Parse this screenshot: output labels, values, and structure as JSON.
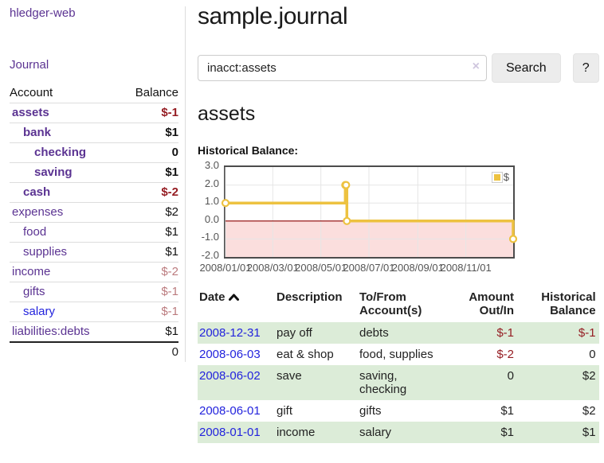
{
  "colors": {
    "accent_purple": "#5b3392",
    "link_blue": "#2323dd",
    "negative_dark": "#951d23",
    "negative_light": "#bb7b7e",
    "row_green": "#dcecd8",
    "chart_gold": "#edc240",
    "chart_negative_fill": "#fbdedd",
    "chart_zero_line": "#8b0000"
  },
  "brand": "hledger-web",
  "nav": {
    "journal": "Journal"
  },
  "sidebar": {
    "account_col": "Account",
    "balance_col": "Balance",
    "accounts": [
      {
        "name": "assets",
        "balance": "$-1"
      },
      {
        "name": "bank",
        "balance": "$1"
      },
      {
        "name": "checking",
        "balance": "0"
      },
      {
        "name": "saving",
        "balance": "$1"
      },
      {
        "name": "cash",
        "balance": "$-2"
      },
      {
        "name": "expenses",
        "balance": "$2"
      },
      {
        "name": "food",
        "balance": "$1"
      },
      {
        "name": "supplies",
        "balance": "$1"
      },
      {
        "name": "income",
        "balance": "$-2"
      },
      {
        "name": "gifts",
        "balance": "$-1"
      },
      {
        "name": "salary",
        "balance": "$-1"
      },
      {
        "name": "liabilities:debts",
        "balance": "$1"
      }
    ],
    "total": "0"
  },
  "main": {
    "title": "sample.journal",
    "search": {
      "value": "inacct:assets",
      "clear": "×",
      "button": "Search",
      "help": "?"
    },
    "account_title": "assets",
    "chart_heading": "Historical Balance:"
  },
  "chart_data": {
    "type": "line",
    "step": true,
    "title": "Historical Balance:",
    "legend": "$",
    "legend_position": "top-right",
    "grid": true,
    "ylim": [
      -2,
      3
    ],
    "yticks": [
      3.0,
      2.0,
      1.0,
      0.0,
      -1.0,
      -2.0
    ],
    "xrange": [
      "2008-01-01",
      "2008-12-31"
    ],
    "xticks": [
      "2008/01/01",
      "2008/03/01",
      "2008/05/01",
      "2008/07/01",
      "2008/09/01",
      "2008/11/01"
    ],
    "series": [
      {
        "name": "$",
        "color": "#edc240",
        "points": [
          [
            "2008-01-01",
            1
          ],
          [
            "2008-06-01",
            2
          ],
          [
            "2008-06-02",
            2
          ],
          [
            "2008-06-03",
            0
          ],
          [
            "2008-12-31",
            -1
          ]
        ]
      }
    ],
    "negative_fill": "#fbdedd",
    "zero_line_color": "#8b0000",
    "gridline_color": "#e6e6e6"
  },
  "register": {
    "headers": {
      "date": "Date",
      "description": "Description",
      "accounts": "To/From Account(s)",
      "amount": "Amount Out/In",
      "balance": "Historical Balance"
    },
    "rows": [
      {
        "date": "2008-12-31",
        "description": "pay off",
        "accounts": "debts",
        "amount": "$-1",
        "balance": "$-1"
      },
      {
        "date": "2008-06-03",
        "description": "eat & shop",
        "accounts": "food, supplies",
        "amount": "$-2",
        "balance": "0"
      },
      {
        "date": "2008-06-02",
        "description": "save",
        "accounts": "saving, checking",
        "amount": "0",
        "balance": "$2"
      },
      {
        "date": "2008-06-01",
        "description": "gift",
        "accounts": "gifts",
        "amount": "$1",
        "balance": "$2"
      },
      {
        "date": "2008-01-01",
        "description": "income",
        "accounts": "salary",
        "amount": "$1",
        "balance": "$1"
      }
    ]
  }
}
